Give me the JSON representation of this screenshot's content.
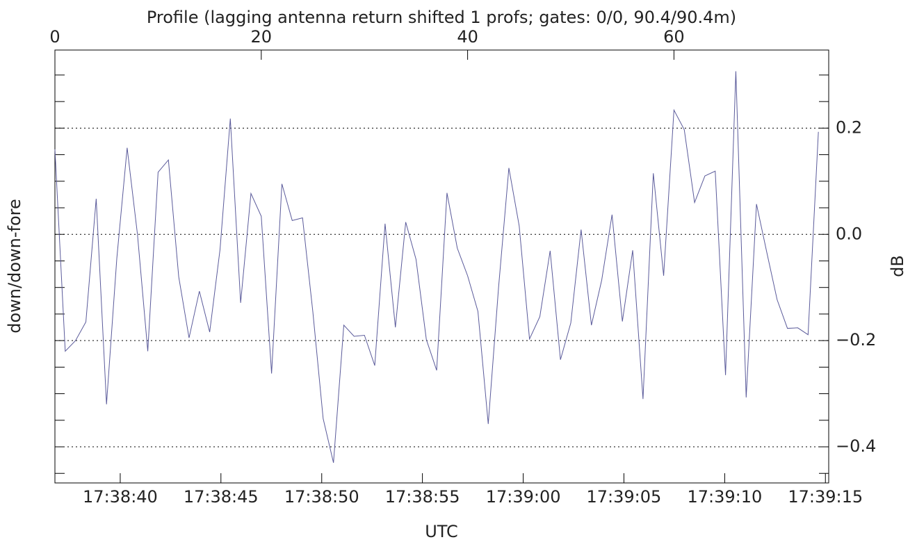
{
  "chart_data": {
    "type": "line",
    "title": "Profile (lagging antenna return shifted 1 profs; gates: 0/0, 90.4/90.4m)",
    "x_label": "UTC",
    "y_label_left": "down/down-fore",
    "y_label": "dB",
    "y_axis_side": "right",
    "x": [
      0,
      1,
      2,
      3,
      4,
      5,
      6,
      7,
      8,
      9,
      10,
      11,
      12,
      13,
      14,
      15,
      16,
      17,
      18,
      19,
      20,
      21,
      22,
      23,
      24,
      25,
      26,
      27,
      28,
      29,
      30,
      31,
      32,
      33,
      34,
      35,
      36,
      37,
      38,
      39,
      40,
      41,
      42,
      43,
      44,
      45,
      46,
      47,
      48,
      49,
      50,
      51,
      52,
      53,
      54,
      55,
      56,
      57,
      58,
      59,
      60,
      61,
      62,
      63,
      64,
      65,
      66,
      67,
      68,
      69,
      70,
      71,
      72,
      73,
      74
    ],
    "series": [
      {
        "color": "#5a5a9a",
        "values": [
          0.16,
          -0.22,
          -0.2,
          -0.165,
          0.067,
          -0.32,
          -0.045,
          0.163,
          0.0,
          -0.22,
          0.117,
          0.14,
          -0.08,
          -0.195,
          -0.107,
          -0.184,
          -0.029,
          0.218,
          -0.129,
          0.077,
          0.034,
          -0.262,
          0.095,
          0.026,
          0.031,
          -0.146,
          -0.347,
          -0.43,
          -0.171,
          -0.192,
          -0.19,
          -0.247,
          0.02,
          -0.175,
          0.023,
          -0.047,
          -0.198,
          -0.256,
          0.078,
          -0.026,
          -0.078,
          -0.145,
          -0.357,
          -0.1,
          0.125,
          0.016,
          -0.197,
          -0.155,
          -0.031,
          -0.236,
          -0.167,
          0.009,
          -0.171,
          -0.086,
          0.037,
          -0.164,
          -0.03,
          -0.31,
          0.115,
          -0.078,
          0.234,
          0.197,
          0.06,
          0.11,
          0.119,
          -0.265,
          0.307,
          -0.307,
          0.057,
          -0.034,
          -0.123,
          -0.177,
          -0.176,
          -0.189,
          0.193
        ]
      }
    ],
    "xlim": [
      0,
      75
    ],
    "top_xticks": [
      0,
      20,
      40,
      60
    ],
    "xticks": [
      {
        "value": 6.33,
        "label": "17:38:40"
      },
      {
        "value": 16.09,
        "label": "17:38:45"
      },
      {
        "value": 25.86,
        "label": "17:38:50"
      },
      {
        "value": 35.62,
        "label": "17:38:55"
      },
      {
        "value": 45.39,
        "label": "17:39:00"
      },
      {
        "value": 55.15,
        "label": "17:39:05"
      },
      {
        "value": 64.92,
        "label": "17:39:10"
      },
      {
        "value": 74.68,
        "label": "17:39:15"
      }
    ],
    "ylim": [
      -0.468,
      0.347
    ],
    "yticks": [
      {
        "value": -0.4,
        "label": "−0.4"
      },
      {
        "value": -0.2,
        "label": "−0.2"
      },
      {
        "value": 0.0,
        "label": "0.0"
      },
      {
        "value": 0.2,
        "label": "0.2"
      }
    ],
    "yminorticks": [
      -0.45,
      -0.35,
      -0.3,
      -0.25,
      -0.15,
      -0.1,
      -0.05,
      0.05,
      0.1,
      0.15,
      0.25,
      0.3
    ],
    "grid": true
  }
}
